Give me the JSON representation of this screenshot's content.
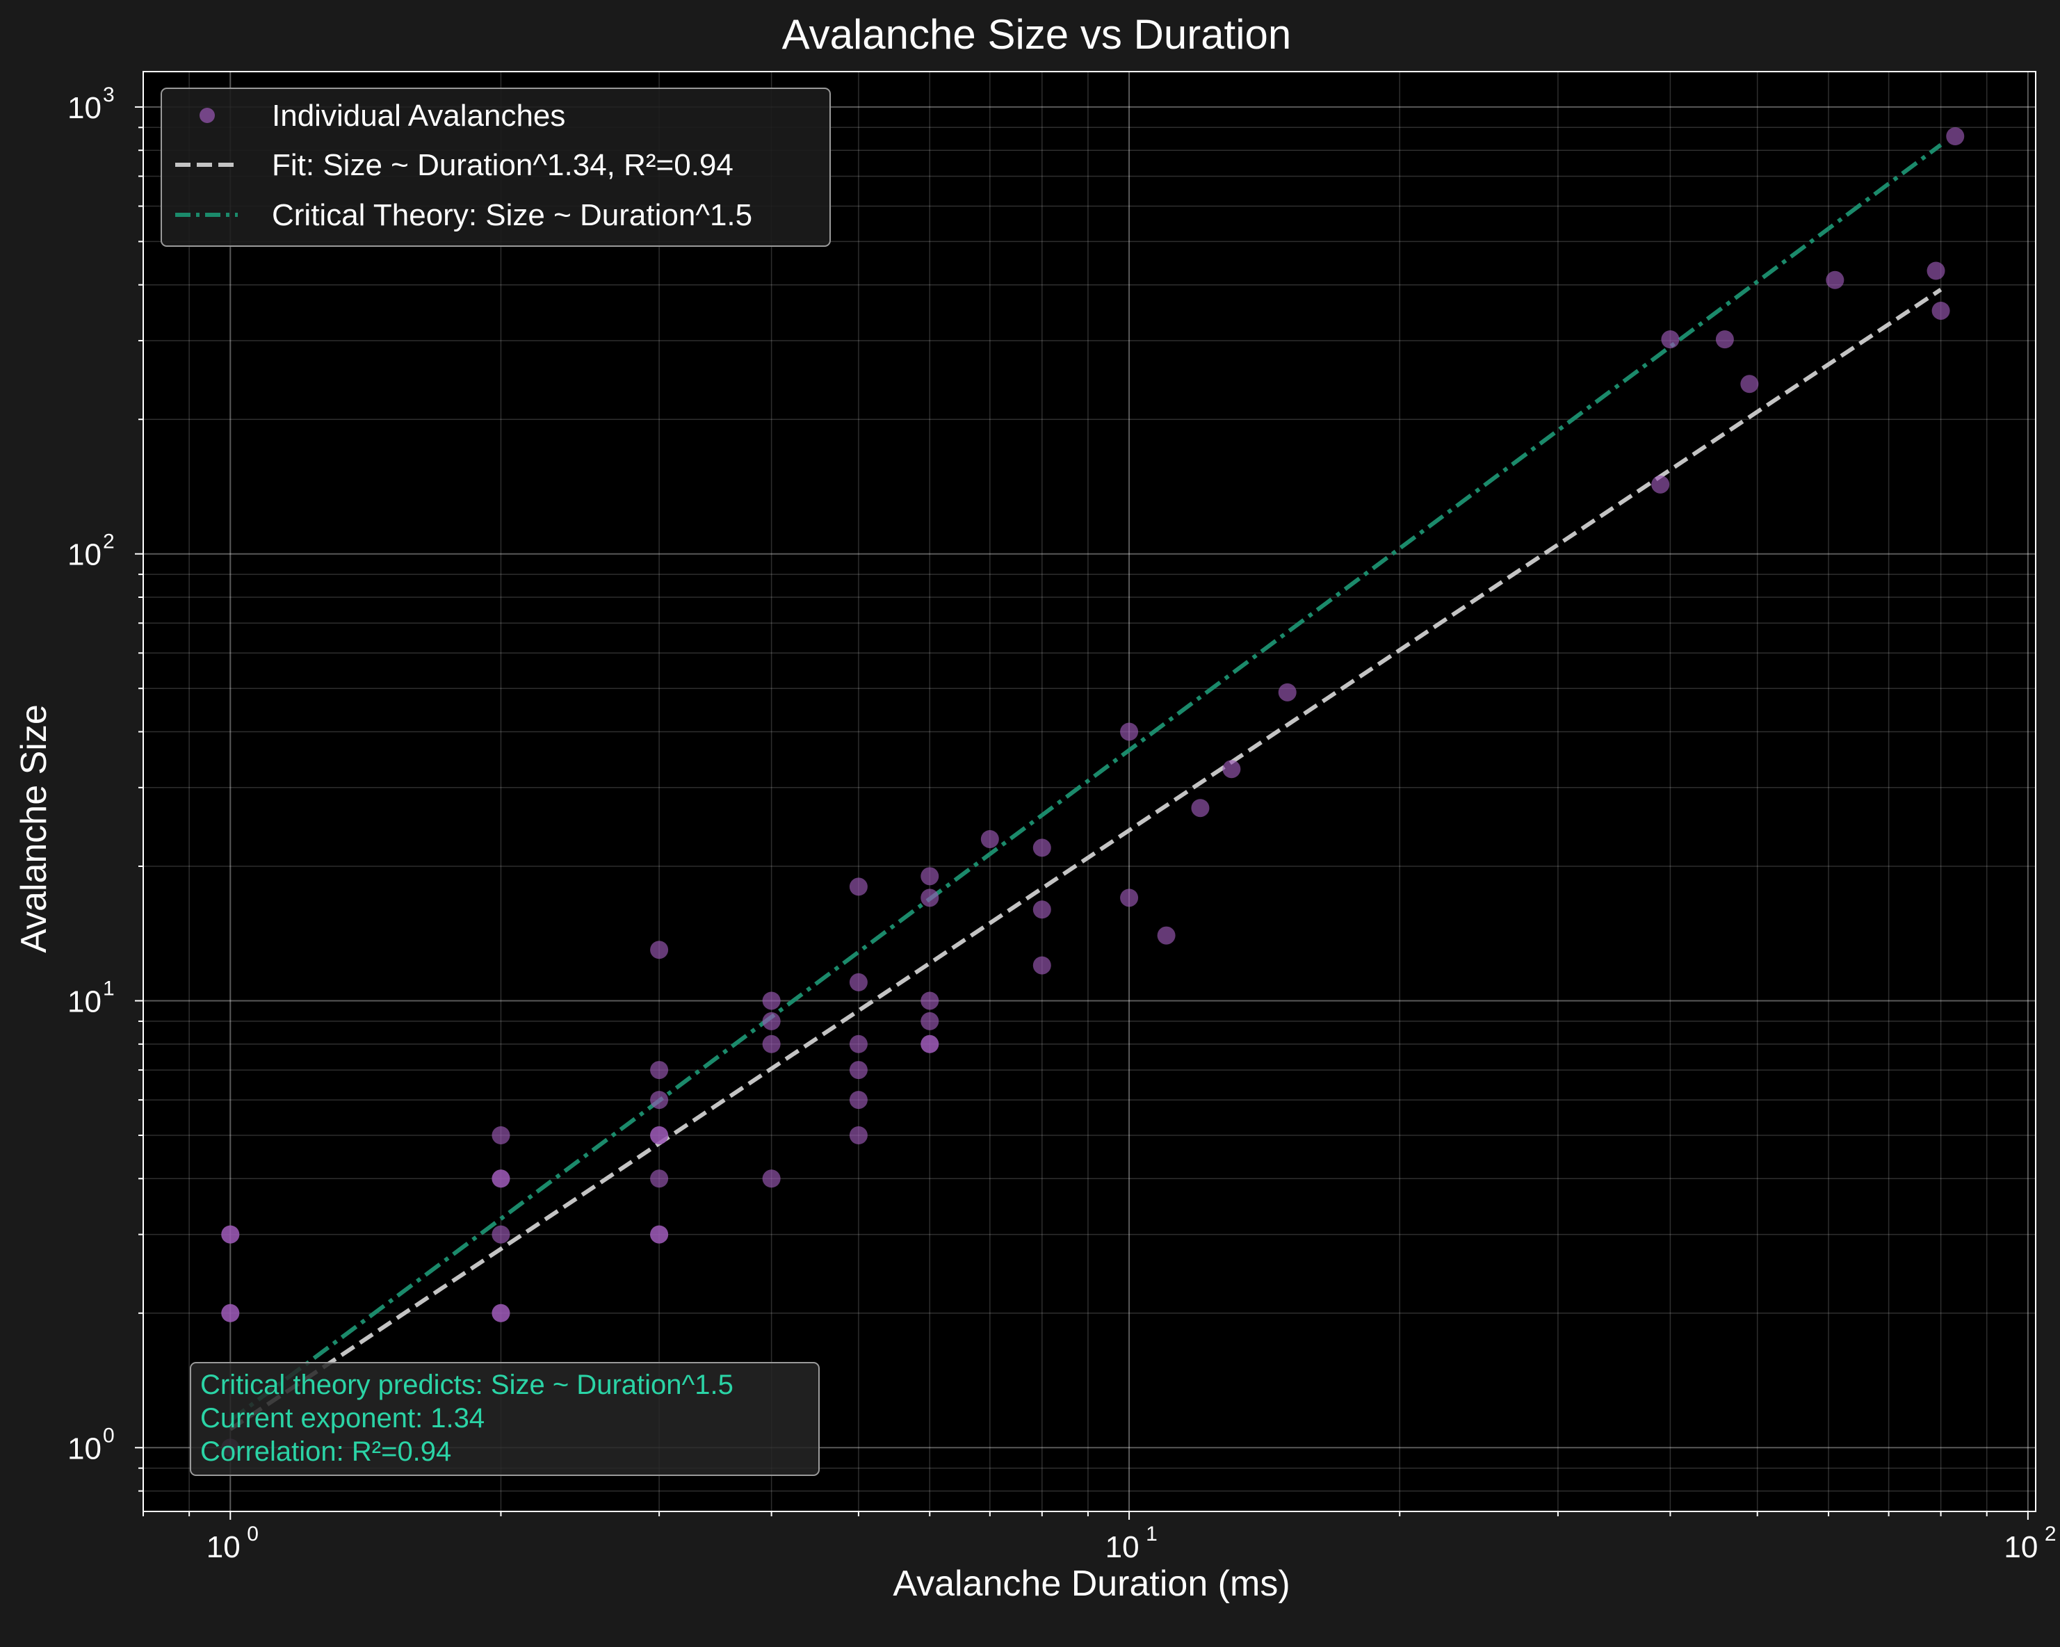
{
  "chart_data": {
    "type": "scatter",
    "title": "Avalanche Size vs Duration",
    "xlabel": "Avalanche Duration (ms)",
    "ylabel": "Avalanche Size",
    "xscale": "log",
    "yscale": "log",
    "xlim": [
      0.8,
      102
    ],
    "ylim": [
      0.72,
      1200
    ],
    "grid": true,
    "legend_position": "top-left",
    "x_ticks": [
      {
        "base": "10",
        "exp": "0",
        "value": 1
      },
      {
        "base": "10",
        "exp": "1",
        "value": 10
      },
      {
        "base": "10",
        "exp": "2",
        "value": 100
      }
    ],
    "y_ticks": [
      {
        "base": "10",
        "exp": "0",
        "value": 1
      },
      {
        "base": "10",
        "exp": "1",
        "value": 10
      },
      {
        "base": "10",
        "exp": "2",
        "value": 100
      },
      {
        "base": "10",
        "exp": "3",
        "value": 1000
      }
    ],
    "series": [
      {
        "name": "Individual Avalanches",
        "kind": "scatter",
        "color": "#9b59b6",
        "points": [
          [
            1,
            1
          ],
          [
            1,
            2
          ],
          [
            1,
            2
          ],
          [
            1,
            3
          ],
          [
            1,
            3
          ],
          [
            2,
            2
          ],
          [
            2,
            2
          ],
          [
            2,
            3
          ],
          [
            2,
            4
          ],
          [
            2,
            4
          ],
          [
            2,
            5
          ],
          [
            3,
            3
          ],
          [
            3,
            3
          ],
          [
            3,
            4
          ],
          [
            3,
            5
          ],
          [
            3,
            5
          ],
          [
            3,
            6
          ],
          [
            3,
            7
          ],
          [
            3,
            13
          ],
          [
            4,
            4
          ],
          [
            4,
            8
          ],
          [
            4,
            9
          ],
          [
            4,
            10
          ],
          [
            5,
            5
          ],
          [
            5,
            6
          ],
          [
            5,
            7
          ],
          [
            5,
            8
          ],
          [
            5,
            11
          ],
          [
            5,
            18
          ],
          [
            6,
            8
          ],
          [
            6,
            8
          ],
          [
            6,
            9
          ],
          [
            6,
            10
          ],
          [
            6,
            17
          ],
          [
            6,
            19
          ],
          [
            7,
            23
          ],
          [
            8,
            12
          ],
          [
            8,
            16
          ],
          [
            8,
            22
          ],
          [
            10,
            17
          ],
          [
            10,
            40
          ],
          [
            11,
            14
          ],
          [
            12,
            27
          ],
          [
            13,
            33
          ],
          [
            15,
            49
          ],
          [
            39,
            143
          ],
          [
            40,
            302
          ],
          [
            46,
            302
          ],
          [
            49,
            240
          ],
          [
            61,
            410
          ],
          [
            79,
            430
          ],
          [
            80,
            350
          ],
          [
            83,
            860
          ]
        ]
      },
      {
        "name": "Fit: Size ~ Duration^1.34, R²=0.94",
        "kind": "line",
        "style": "dashed",
        "color": "#c4c4c4",
        "x_range": [
          1,
          80
        ],
        "intercept": 1.1,
        "exponent": 1.34
      },
      {
        "name": "Critical Theory: Size ~ Duration^1.5",
        "kind": "line",
        "style": "dashdot",
        "color": "#1b8a6b",
        "x_range": [
          1,
          80
        ],
        "intercept": 1.15,
        "exponent": 1.5
      }
    ],
    "annotation": {
      "lines": [
        "Critical theory predicts: Size ~ Duration^1.5",
        "Current exponent: 1.34",
        "Correlation: R²=0.94"
      ],
      "color": "#2bd4a6"
    }
  }
}
